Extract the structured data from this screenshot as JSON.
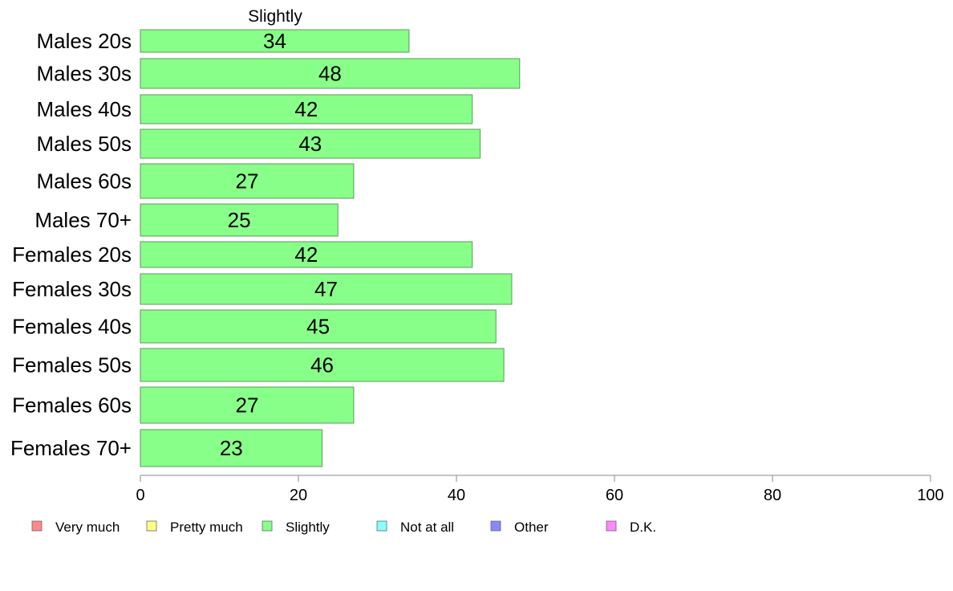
{
  "chart_data": {
    "type": "bar",
    "orientation": "horizontal",
    "title": "Slightly",
    "categories": [
      "Males 20s",
      "Males 30s",
      "Males 40s",
      "Males 50s",
      "Males 60s",
      "Males 70+",
      "Females 20s",
      "Females 30s",
      "Females 40s",
      "Females 50s",
      "Females 60s",
      "Females 70+"
    ],
    "series": [
      {
        "name": "Slightly",
        "color": "#88ff88",
        "values": [
          34,
          48,
          42,
          43,
          27,
          25,
          42,
          47,
          45,
          46,
          27,
          23
        ]
      }
    ],
    "xlim": [
      0,
      100
    ],
    "xticks": [
      "0",
      "20",
      "40",
      "60",
      "80",
      "100"
    ],
    "grid": false,
    "legend_position": "bottom",
    "legend": [
      {
        "label": "Very much",
        "color": "#ff8888"
      },
      {
        "label": "Pretty much",
        "color": "#ffff88"
      },
      {
        "label": "Slightly",
        "color": "#88ff88"
      },
      {
        "label": "Not at all",
        "color": "#88ffff"
      },
      {
        "label": "Other",
        "color": "#8888ff"
      },
      {
        "label": "D.K.",
        "color": "#ff88ff"
      }
    ]
  }
}
